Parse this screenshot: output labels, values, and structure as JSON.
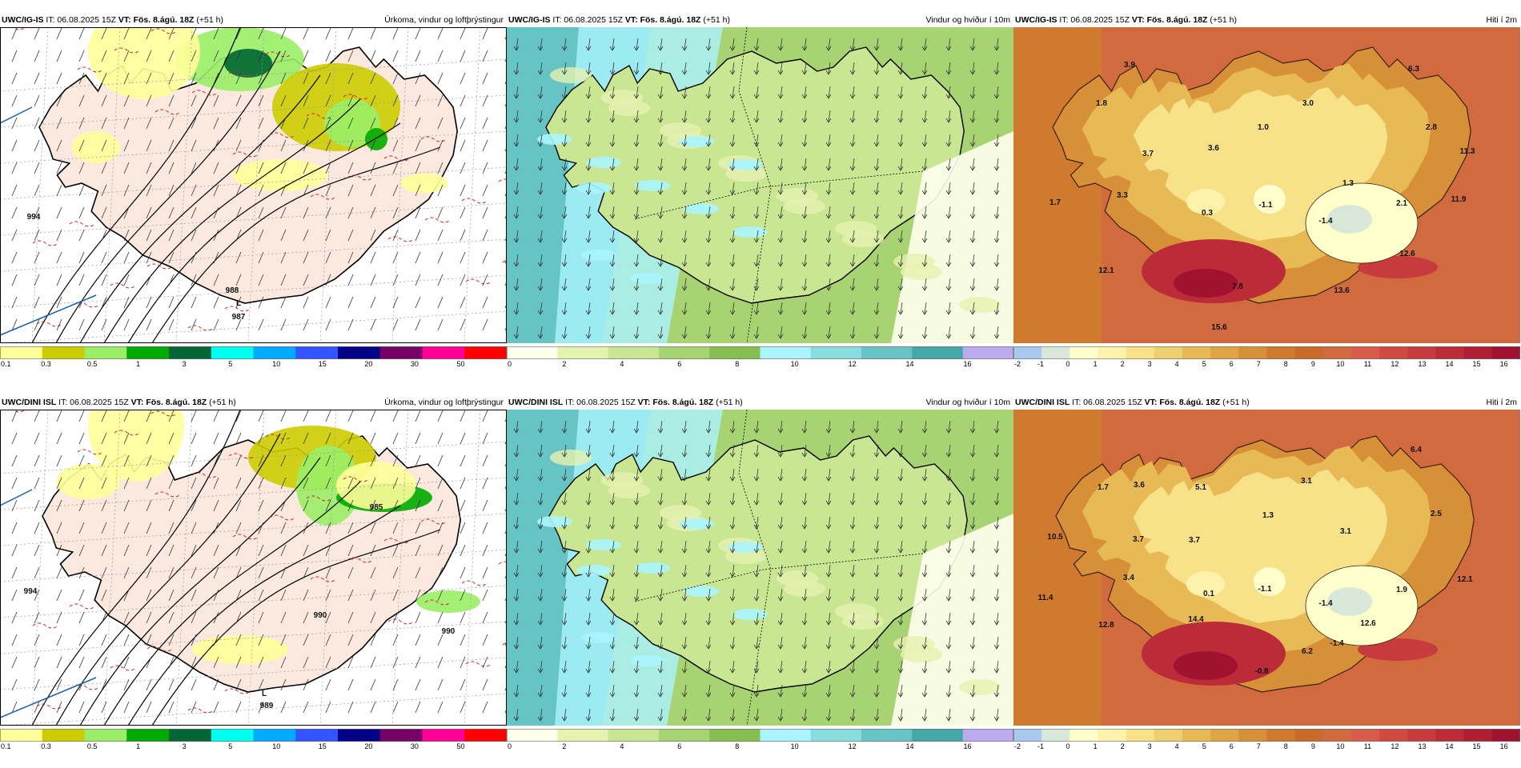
{
  "panels": [
    {
      "id": "p1",
      "source": "UWC/IG-IS",
      "issued": "IT: 06.08.2025 15Z",
      "valid": "VT: Fös. 8.ágú. 18Z",
      "lead": "(+51 h)",
      "title": "Úrkoma, vindur og loftþrýstingur",
      "colorbar": [
        "0.1",
        "0.3",
        "0.5",
        "1",
        "3",
        "5",
        "10",
        "15",
        "20",
        "30",
        "50"
      ],
      "pressure_labels": [
        "988",
        "987",
        "L",
        "994"
      ]
    },
    {
      "id": "p2",
      "source": "UWC/IG-IS",
      "issued": "IT: 06.08.2025 15Z",
      "valid": "VT: Fös. 8.ágú. 18Z",
      "lead": "(+51 h)",
      "title": "Vindur og hviður í 10m",
      "colorbar": [
        "0",
        "2",
        "4",
        "6",
        "8",
        "10",
        "12",
        "14",
        "16"
      ]
    },
    {
      "id": "p3",
      "source": "UWC/IG-IS",
      "issued": "IT: 06.08.2025 15Z",
      "valid": "VT: Fös. 8.ágú. 18Z",
      "lead": "(+51 h)",
      "title": "Hiti í 2m",
      "colorbar": [
        "-2",
        "-1",
        "0",
        "1",
        "2",
        "3",
        "4",
        "5",
        "6",
        "7",
        "8",
        "9",
        "10",
        "11",
        "12",
        "13",
        "14",
        "15",
        "16"
      ],
      "temps": [
        "3.9",
        "6.3",
        "1.8",
        "3.0",
        "1.0",
        "2.8",
        "3.7",
        "3.6",
        "11.3",
        "1.3",
        "1.7",
        "3.3",
        "0.3",
        "-1.1",
        "-1.4",
        "2.1",
        "11.9",
        "12.1",
        "12.6",
        "7.8",
        "13.6",
        "15.6"
      ]
    },
    {
      "id": "p4",
      "source": "UWC/DINI ISL",
      "issued": "IT: 06.08.2025 15Z",
      "valid": "VT: Fös. 8.ágú. 18Z",
      "lead": "(+51 h)",
      "title": "Úrkoma, vindur og loftþrýstingur",
      "colorbar": [
        "0.1",
        "0.3",
        "0.5",
        "1",
        "3",
        "5",
        "10",
        "15",
        "20",
        "30",
        "50"
      ],
      "pressure_labels": [
        "990",
        "990",
        "L",
        "989",
        "994",
        "985"
      ]
    },
    {
      "id": "p5",
      "source": "UWC/DINI ISL",
      "issued": "IT: 06.08.2025 15Z",
      "valid": "VT: Fös. 8.ágú. 18Z",
      "lead": "(+51 h)",
      "title": "Vindur og hviður í 10m",
      "colorbar": [
        "0",
        "2",
        "4",
        "6",
        "8",
        "10",
        "12",
        "14",
        "16"
      ]
    },
    {
      "id": "p6",
      "source": "UWC/DINI ISL",
      "issued": "IT: 06.08.2025 15Z",
      "valid": "VT: Fös. 8.ágú. 18Z",
      "lead": "(+51 h)",
      "title": "Hiti í 2m",
      "colorbar": [
        "-2",
        "-1",
        "0",
        "1",
        "2",
        "3",
        "4",
        "5",
        "6",
        "7",
        "8",
        "9",
        "10",
        "11",
        "12",
        "13",
        "14",
        "15",
        "16"
      ],
      "temps": [
        "6.4",
        "1.7",
        "3.6",
        "5.1",
        "3.1",
        "2.5",
        "10.5",
        "3.7",
        "3.7",
        "1.3",
        "3.1",
        "3.4",
        "0.1",
        "-1.1",
        "-1.4",
        "1.9",
        "12.1",
        "11.4",
        "12.8",
        "14.4",
        "6.2",
        "12.6",
        "-1.4",
        "-0.8"
      ]
    }
  ],
  "colors": {
    "precip_scale": [
      "#ffff99",
      "#cccc00",
      "#99ee66",
      "#00aa00",
      "#006633",
      "#00ffee",
      "#00aaff",
      "#3355ff",
      "#000088",
      "#770066",
      "#ff0099",
      "#ff0000"
    ],
    "wind_scale": [
      "#ffffee",
      "#e6f3b0",
      "#c9e693",
      "#a8d372",
      "#86bf4f",
      "#aaf5ff",
      "#88dede",
      "#66c4c4",
      "#44a8a8",
      "#bbaaee"
    ],
    "temp_scale": [
      "#a8c8ee",
      "#d8e8d8",
      "#ffffcc",
      "#fff2aa",
      "#f7e28a",
      "#efd070",
      "#e8ba55",
      "#e0a444",
      "#d89038",
      "#cf7a2e",
      "#c86a2a",
      "#d26a40",
      "#d85c4a",
      "#d04a44",
      "#c73a3e",
      "#bc2c38",
      "#b01e34",
      "#a01230"
    ]
  }
}
